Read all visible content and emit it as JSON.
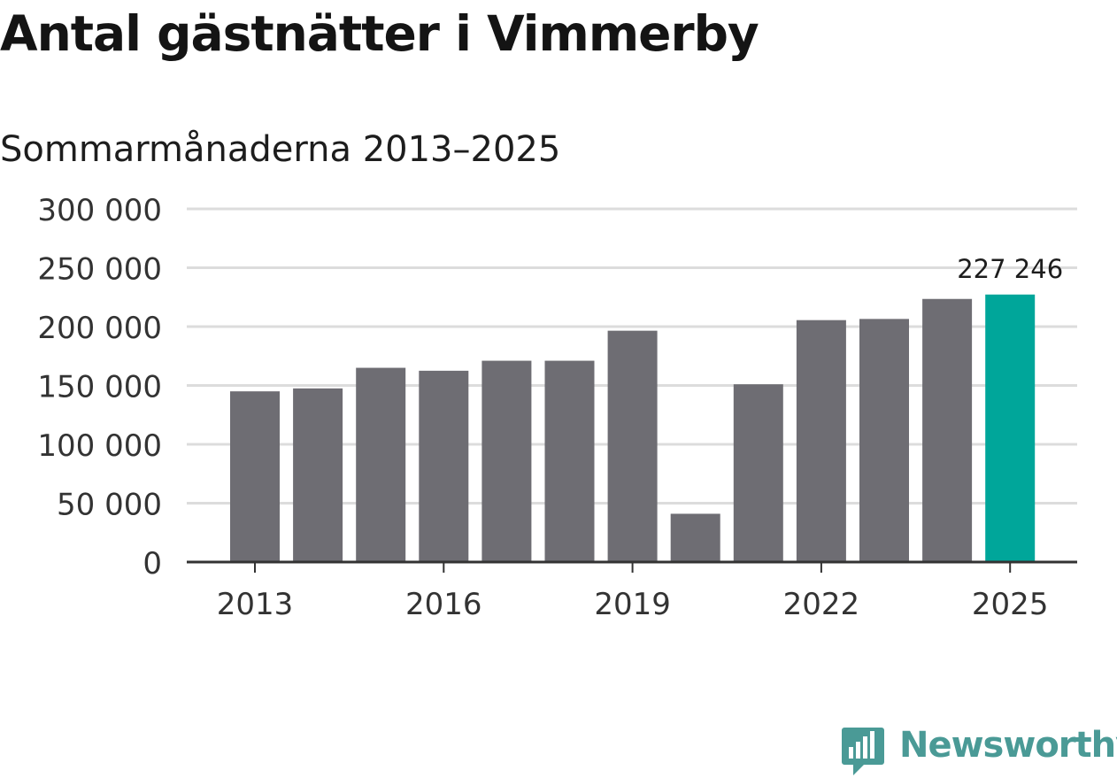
{
  "colors": {
    "bar": "#6e6d73",
    "highlight": "#00a69a",
    "grid": "#dcdcdc",
    "axis": "#333333",
    "brand": "#4a9a96"
  },
  "brand": {
    "name": "Newsworthy",
    "icon": "newsworthy-logo-icon"
  },
  "chart_data": {
    "type": "bar",
    "title": "Antal gästnätter i Vimmerby",
    "subtitle": "Sommarmånaderna 2013–2025",
    "xlabel": "",
    "ylabel": "",
    "categories": [
      "2013",
      "2014",
      "2015",
      "2016",
      "2017",
      "2018",
      "2019",
      "2020",
      "2021",
      "2022",
      "2023",
      "2024",
      "2025"
    ],
    "values": [
      145000,
      147500,
      165000,
      162500,
      171000,
      171000,
      196500,
      41000,
      151000,
      205500,
      206500,
      223500,
      227246
    ],
    "ylim": [
      0,
      300000
    ],
    "yticks": [
      0,
      50000,
      100000,
      150000,
      200000,
      250000,
      300000
    ],
    "ytick_labels": [
      "0",
      "50 000",
      "100 000",
      "150 000",
      "200 000",
      "250 000",
      "300 000"
    ],
    "xtick_labels": [
      "2013",
      "2016",
      "2019",
      "2022",
      "2025"
    ],
    "highlight": {
      "category": "2025",
      "label": "227 246"
    },
    "grid": true,
    "legend": "none"
  }
}
